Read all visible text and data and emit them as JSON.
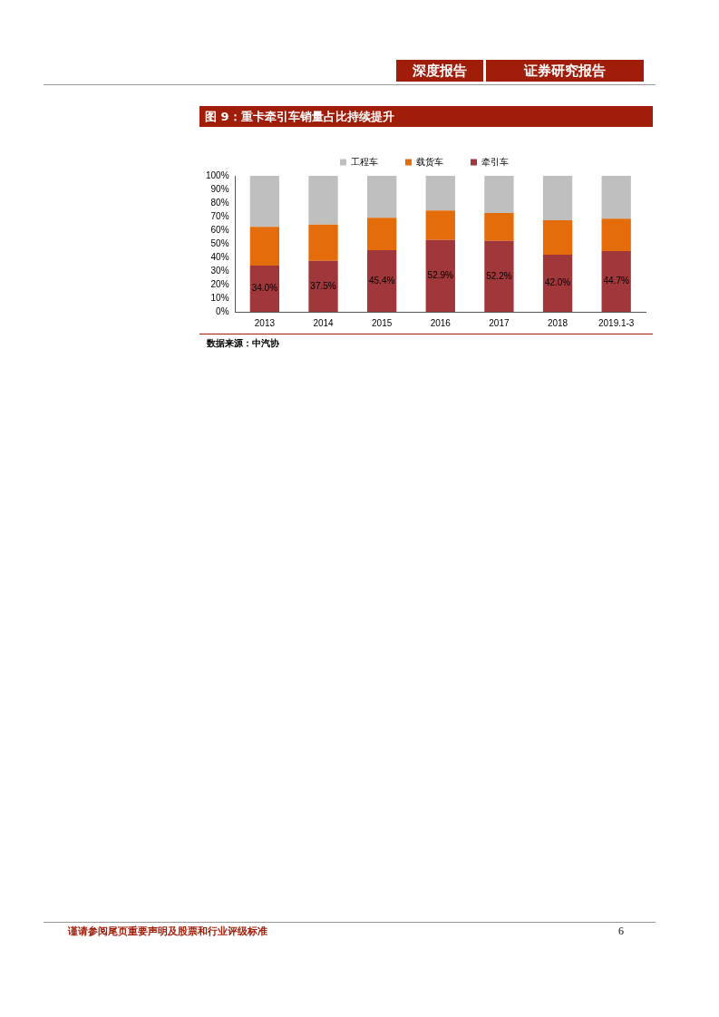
{
  "chart_data": {
    "type": "bar",
    "title": "图 9：重卡牵引车销量占比持续提升",
    "categories": [
      "2013",
      "2014",
      "2015",
      "2016",
      "2017",
      "2018",
      "2019.1-3"
    ],
    "stacked": true,
    "series": [
      {
        "name": "牵引车",
        "color": "#a0373a",
        "values": [
          34.0,
          37.5,
          45.4,
          52.9,
          52.2,
          42.0,
          44.7
        ],
        "value_labels": [
          "34.0%",
          "37.5%",
          "45.4%",
          "52.9%",
          "52.2%",
          "42.0%",
          "44.7%"
        ]
      },
      {
        "name": "载货车",
        "color": "#e46c0a",
        "values": [
          28.5,
          26.7,
          23.8,
          21.6,
          20.5,
          25.4,
          23.8
        ]
      },
      {
        "name": "工程车",
        "color": "#bfbfbf",
        "values": [
          37.5,
          35.8,
          30.8,
          25.5,
          27.3,
          32.6,
          31.5
        ]
      }
    ],
    "ylim": [
      0,
      100
    ],
    "yticks": [
      {
        "value": 0,
        "label": "0%"
      },
      {
        "value": 10,
        "label": "10%"
      },
      {
        "value": 20,
        "label": "20%"
      },
      {
        "value": 30,
        "label": "30%"
      },
      {
        "value": 40,
        "label": "40%"
      },
      {
        "value": 50,
        "label": "50%"
      },
      {
        "value": 60,
        "label": "60%"
      },
      {
        "value": 70,
        "label": "70%"
      },
      {
        "value": 80,
        "label": "80%"
      },
      {
        "value": 90,
        "label": "90%"
      },
      {
        "value": 100,
        "label": "100%"
      }
    ],
    "grid": false,
    "legend": "top",
    "annotations": [
      "深度报告",
      "证券研究报告",
      "数据来源：中汽协",
      "谨请参阅尾页重要声明及股票和行业评级标准",
      "6"
    ]
  }
}
